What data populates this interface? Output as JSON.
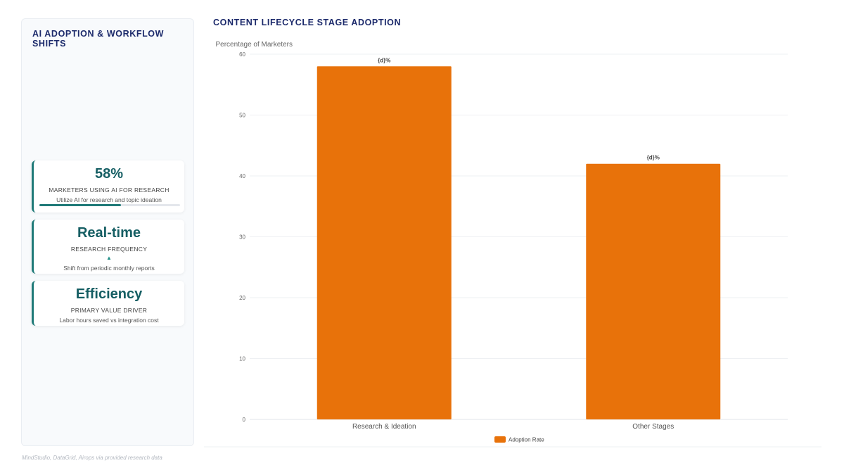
{
  "sidebar": {
    "title": "AI ADOPTION & WORKFLOW SHIFTS",
    "cards": [
      {
        "value": "58%",
        "label": "MARKETERS USING AI FOR RESEARCH",
        "description": "Utilize AI for research and topic ideation",
        "progress": 0.58
      },
      {
        "value": "Real-time",
        "label": "RESEARCH FREQUENCY",
        "trend_icon": "▲",
        "description": "Shift from periodic monthly reports"
      },
      {
        "value": "Efficiency",
        "label": "PRIMARY VALUE DRIVER",
        "description": "Labor hours saved vs integration cost"
      }
    ]
  },
  "chart_title": "CONTENT LIFECYCLE STAGE ADOPTION",
  "footer": {
    "source": "MindStudio, DataGrid, Airops via provided research data"
  },
  "colors": {
    "bar": "#e8720a",
    "accent": "#1f7a78",
    "title": "#1c2a6b"
  },
  "chart_data": {
    "type": "bar",
    "title": "CONTENT LIFECYCLE STAGE ADOPTION",
    "categories": [
      "Research & Ideation",
      "Other Stages"
    ],
    "series": [
      {
        "name": "Adoption Rate",
        "values": [
          58,
          42
        ]
      }
    ],
    "data_labels": [
      "{d}%",
      "{d}%"
    ],
    "ylabel": "Percentage of Marketers",
    "xlabel": "",
    "ylim": [
      0,
      60
    ],
    "yticks": [
      0,
      10,
      20,
      30,
      40,
      50,
      60
    ],
    "grid": true,
    "legend_position": "bottom"
  }
}
